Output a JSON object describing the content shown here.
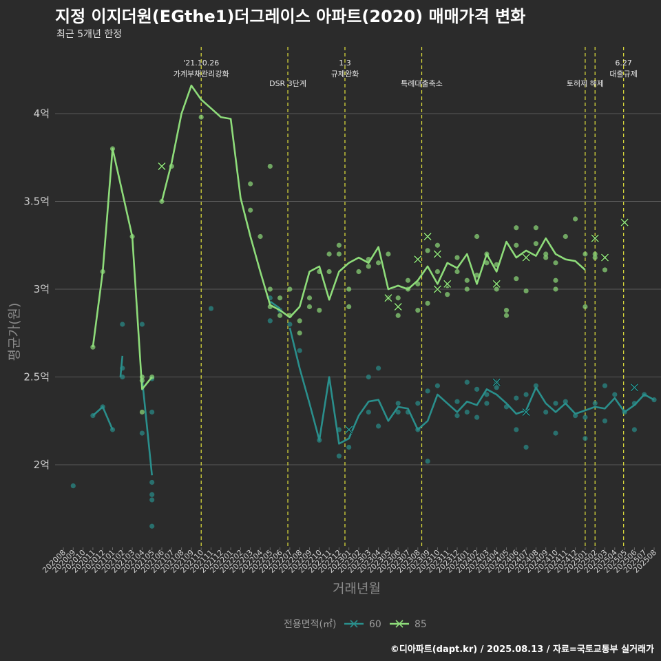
{
  "title": "지정 이지더원(EGthe1)더그레이스 아파트(2020) 매매가격 변화",
  "subtitle": "최근 5개년 한정",
  "caption": "©디아파트(dapt.kr) / 2025.08.13 / 자료=국토교통부 실거래가",
  "chart_data": {
    "type": "line",
    "xlabel": "거래년월",
    "ylabel": "평균가(원)",
    "x": [
      "202008",
      "202009",
      "202010",
      "202011",
      "202012",
      "202101",
      "202102",
      "202103",
      "202104",
      "202105",
      "202106",
      "202107",
      "202108",
      "202109",
      "202110",
      "202111",
      "202112",
      "202201",
      "202202",
      "202203",
      "202204",
      "202205",
      "202206",
      "202207",
      "202208",
      "202209",
      "202210",
      "202211",
      "202212",
      "202301",
      "202302",
      "202303",
      "202304",
      "202305",
      "202306",
      "202307",
      "202308",
      "202309",
      "202310",
      "202311",
      "202312",
      "202401",
      "202402",
      "202403",
      "202404",
      "202405",
      "202406",
      "202407",
      "202408",
      "202409",
      "202410",
      "202411",
      "202412",
      "202501",
      "202502",
      "202503",
      "202504",
      "202505",
      "202506",
      "202507",
      "202508"
    ],
    "yticks": [
      2.0,
      2.5,
      3.0,
      3.5,
      4.0
    ],
    "yticklabels": [
      "2억",
      "2.5억",
      "3억",
      "3.5억",
      "4억"
    ],
    "ylim": [
      1.5,
      4.35
    ],
    "colors": {
      "60": "#2a8f8c",
      "85": "#8edc7a",
      "event": "#e4e43c",
      "grid": "#5a5a5a"
    },
    "legend": {
      "title": "전용면적(㎡)",
      "position": "bottom"
    },
    "events": [
      {
        "x": 14.0,
        "lines": [
          "'21.10.26",
          "가계부채관리강화"
        ]
      },
      {
        "x": 22.8,
        "lines": [
          "DSR 3단계"
        ]
      },
      {
        "x": 28.6,
        "lines": [
          "1.3",
          "규제완화"
        ]
      },
      {
        "x": 36.4,
        "lines": [
          "특례대출축소"
        ]
      },
      {
        "x": 53.0,
        "lines": [
          "토허제 해제"
        ]
      },
      {
        "x": 54.0,
        "lines": []
      },
      {
        "x": 56.9,
        "lines": [
          "6.27",
          "대출규제"
        ]
      }
    ],
    "series": [
      {
        "name": "60",
        "segments": [
          [
            [
              3,
              2.28
            ],
            [
              4,
              2.33
            ],
            [
              5,
              2.2
            ]
          ],
          [
            [
              6,
              2.62
            ],
            [
              5.8,
              2.5
            ]
          ],
          [
            [
              8,
              2.49
            ],
            [
              9,
              1.94
            ]
          ],
          [
            [
              21,
              2.93
            ],
            [
              22,
              2.89
            ]
          ],
          [
            [
              23,
              2.78
            ],
            [
              24,
              2.55
            ],
            [
              25,
              2.35
            ],
            [
              26,
              2.14
            ],
            [
              27,
              2.5
            ],
            [
              28,
              2.12
            ],
            [
              29,
              2.15
            ],
            [
              30,
              2.28
            ],
            [
              31,
              2.36
            ],
            [
              32,
              2.37
            ],
            [
              33,
              2.25
            ],
            [
              34,
              2.33
            ],
            [
              35,
              2.32
            ],
            [
              36,
              2.2
            ],
            [
              37,
              2.25
            ],
            [
              38,
              2.4
            ],
            [
              39,
              2.35
            ],
            [
              40,
              2.3
            ],
            [
              41,
              2.36
            ],
            [
              42,
              2.34
            ],
            [
              43,
              2.43
            ],
            [
              44,
              2.4
            ],
            [
              45,
              2.35
            ],
            [
              46,
              2.29
            ],
            [
              47,
              2.31
            ],
            [
              48,
              2.44
            ],
            [
              49,
              2.35
            ],
            [
              50,
              2.3
            ],
            [
              51,
              2.35
            ],
            [
              52,
              2.29
            ],
            [
              53,
              2.31
            ],
            [
              54,
              2.33
            ],
            [
              55,
              2.32
            ],
            [
              56,
              2.38
            ],
            [
              57,
              2.3
            ],
            [
              58,
              2.34
            ],
            [
              59,
              2.4
            ],
            [
              60,
              2.37
            ]
          ]
        ],
        "points": [
          [
            1.0,
            1.88
          ],
          [
            3,
            2.28
          ],
          [
            4,
            2.33
          ],
          [
            5,
            2.2
          ],
          [
            6,
            2.8
          ],
          [
            6,
            2.55
          ],
          [
            6,
            2.5
          ],
          [
            8,
            2.8
          ],
          [
            8,
            2.18
          ],
          [
            9,
            2.49
          ],
          [
            9,
            2.3
          ],
          [
            9,
            1.9
          ],
          [
            9,
            1.83
          ],
          [
            9,
            1.8
          ],
          [
            9,
            1.65
          ],
          [
            15,
            2.89
          ],
          [
            21,
            2.95
          ],
          [
            21,
            2.82
          ],
          [
            22,
            2.88
          ],
          [
            23,
            2.8
          ],
          [
            24,
            2.65
          ],
          [
            26,
            2.14
          ],
          [
            28,
            2.2
          ],
          [
            28,
            2.05
          ],
          [
            29,
            2.1
          ],
          [
            31,
            2.3
          ],
          [
            31,
            2.5
          ],
          [
            32,
            2.55
          ],
          [
            32,
            2.22
          ],
          [
            34,
            2.35
          ],
          [
            34,
            2.3
          ],
          [
            35,
            2.3
          ],
          [
            36,
            2.35
          ],
          [
            36,
            2.2
          ],
          [
            37,
            2.42
          ],
          [
            37,
            2.02
          ],
          [
            38,
            2.45
          ],
          [
            40,
            2.36
          ],
          [
            40,
            2.28
          ],
          [
            41,
            2.47
          ],
          [
            41,
            2.3
          ],
          [
            42,
            2.27
          ],
          [
            42,
            2.43
          ],
          [
            43,
            2.4
          ],
          [
            43,
            2.35
          ],
          [
            44,
            2.47
          ],
          [
            44,
            2.44
          ],
          [
            45,
            2.33
          ],
          [
            46,
            2.38
          ],
          [
            46,
            2.2
          ],
          [
            47,
            2.4
          ],
          [
            47,
            2.1
          ],
          [
            48,
            2.45
          ],
          [
            49,
            2.3
          ],
          [
            50,
            2.35
          ],
          [
            50,
            2.18
          ],
          [
            51,
            2.36
          ],
          [
            52,
            2.28
          ],
          [
            53,
            2.27
          ],
          [
            53,
            2.15
          ],
          [
            54,
            2.35
          ],
          [
            55,
            2.45
          ],
          [
            55,
            2.25
          ],
          [
            56,
            2.4
          ],
          [
            57,
            2.3
          ],
          [
            58,
            2.2
          ],
          [
            58,
            2.35
          ],
          [
            59,
            2.4
          ],
          [
            60,
            2.37
          ]
        ],
        "crosses": [
          [
            29,
            2.2
          ],
          [
            44,
            2.47
          ],
          [
            47,
            2.3
          ],
          [
            58,
            2.44
          ]
        ]
      },
      {
        "name": "85",
        "segments": [
          [
            [
              3,
              2.67
            ],
            [
              4,
              3.1
            ],
            [
              5,
              3.8
            ],
            [
              6,
              3.55
            ],
            [
              7,
              3.3
            ],
            [
              8,
              2.43
            ],
            [
              9,
              2.5
            ]
          ],
          [
            [
              10,
              3.5
            ],
            [
              11,
              3.72
            ],
            [
              12,
              4.0
            ],
            [
              13,
              4.16
            ],
            [
              14,
              4.08
            ],
            [
              15,
              4.03
            ],
            [
              16,
              3.98
            ],
            [
              17,
              3.97
            ],
            [
              18,
              3.52
            ],
            [
              19,
              3.3
            ],
            [
              20,
              3.1
            ],
            [
              21,
              2.91
            ],
            [
              22,
              2.88
            ],
            [
              23,
              2.84
            ],
            [
              24,
              2.9
            ],
            [
              25,
              3.1
            ],
            [
              26,
              3.13
            ],
            [
              27,
              2.94
            ],
            [
              28,
              3.1
            ],
            [
              29,
              3.15
            ],
            [
              30,
              3.18
            ],
            [
              31,
              3.15
            ],
            [
              32,
              3.24
            ],
            [
              33,
              3.0
            ],
            [
              34,
              3.02
            ],
            [
              35,
              3.0
            ],
            [
              36,
              3.05
            ],
            [
              37,
              3.13
            ],
            [
              38,
              3.03
            ],
            [
              39,
              3.15
            ],
            [
              40,
              3.12
            ],
            [
              41,
              3.2
            ],
            [
              42,
              3.03
            ],
            [
              43,
              3.2
            ],
            [
              44,
              3.1
            ],
            [
              45,
              3.27
            ],
            [
              46,
              3.18
            ],
            [
              47,
              3.22
            ],
            [
              48,
              3.19
            ],
            [
              49,
              3.29
            ],
            [
              50,
              3.2
            ],
            [
              51,
              3.17
            ],
            [
              52,
              3.16
            ],
            [
              53,
              3.11
            ]
          ]
        ],
        "points": [
          [
            3,
            2.67
          ],
          [
            4,
            3.1
          ],
          [
            5,
            3.8
          ],
          [
            7,
            3.3
          ],
          [
            8,
            2.5
          ],
          [
            8,
            2.48
          ],
          [
            8,
            2.3
          ],
          [
            9,
            2.5
          ],
          [
            10,
            3.5
          ],
          [
            11,
            3.7
          ],
          [
            14,
            3.98
          ],
          [
            19,
            3.6
          ],
          [
            19,
            3.45
          ],
          [
            20,
            3.3
          ],
          [
            21,
            3.7
          ],
          [
            21,
            3.0
          ],
          [
            21,
            2.9
          ],
          [
            22,
            2.95
          ],
          [
            22,
            2.85
          ],
          [
            23,
            3.0
          ],
          [
            23,
            2.85
          ],
          [
            24,
            2.82
          ],
          [
            24,
            2.75
          ],
          [
            25,
            2.95
          ],
          [
            25,
            2.9
          ],
          [
            26,
            3.1
          ],
          [
            26,
            2.88
          ],
          [
            27,
            3.2
          ],
          [
            27,
            3.1
          ],
          [
            28,
            3.25
          ],
          [
            28,
            3.2
          ],
          [
            29,
            2.9
          ],
          [
            29,
            3.0
          ],
          [
            30,
            3.1
          ],
          [
            31,
            3.17
          ],
          [
            31,
            3.13
          ],
          [
            32,
            3.15
          ],
          [
            33,
            3.2
          ],
          [
            33,
            2.95
          ],
          [
            34,
            2.95
          ],
          [
            34,
            2.85
          ],
          [
            35,
            3.05
          ],
          [
            35,
            3.0
          ],
          [
            36,
            3.03
          ],
          [
            36,
            2.88
          ],
          [
            37,
            3.22
          ],
          [
            37,
            2.92
          ],
          [
            38,
            3.25
          ],
          [
            38,
            3.1
          ],
          [
            39,
            3.02
          ],
          [
            39,
            2.97
          ],
          [
            40,
            3.18
          ],
          [
            40,
            3.1
          ],
          [
            41,
            3.05
          ],
          [
            41,
            3.0
          ],
          [
            42,
            3.3
          ],
          [
            42,
            3.08
          ],
          [
            43,
            3.15
          ],
          [
            43,
            3.2
          ],
          [
            44,
            3.14
          ],
          [
            44,
            3.0
          ],
          [
            45,
            2.85
          ],
          [
            45,
            2.88
          ],
          [
            46,
            3.35
          ],
          [
            46,
            3.25
          ],
          [
            46,
            3.06
          ],
          [
            47,
            2.99
          ],
          [
            48,
            3.35
          ],
          [
            48,
            3.26
          ],
          [
            49,
            3.2
          ],
          [
            49,
            3.18
          ],
          [
            50,
            3.15
          ],
          [
            50,
            3.0
          ],
          [
            50,
            3.05
          ],
          [
            51,
            3.3
          ],
          [
            52,
            3.4
          ],
          [
            53,
            3.2
          ],
          [
            53,
            2.9
          ],
          [
            54,
            3.18
          ],
          [
            54,
            3.2
          ],
          [
            55,
            3.11
          ]
        ],
        "crosses": [
          [
            10,
            3.7
          ],
          [
            33,
            2.95
          ],
          [
            34,
            2.9
          ],
          [
            36,
            3.17
          ],
          [
            37,
            3.3
          ],
          [
            38,
            3.2
          ],
          [
            38,
            3.0
          ],
          [
            39,
            3.03
          ],
          [
            44,
            3.03
          ],
          [
            47,
            3.18
          ],
          [
            54,
            3.29
          ],
          [
            55,
            3.18
          ],
          [
            57,
            3.38
          ]
        ]
      }
    ]
  }
}
